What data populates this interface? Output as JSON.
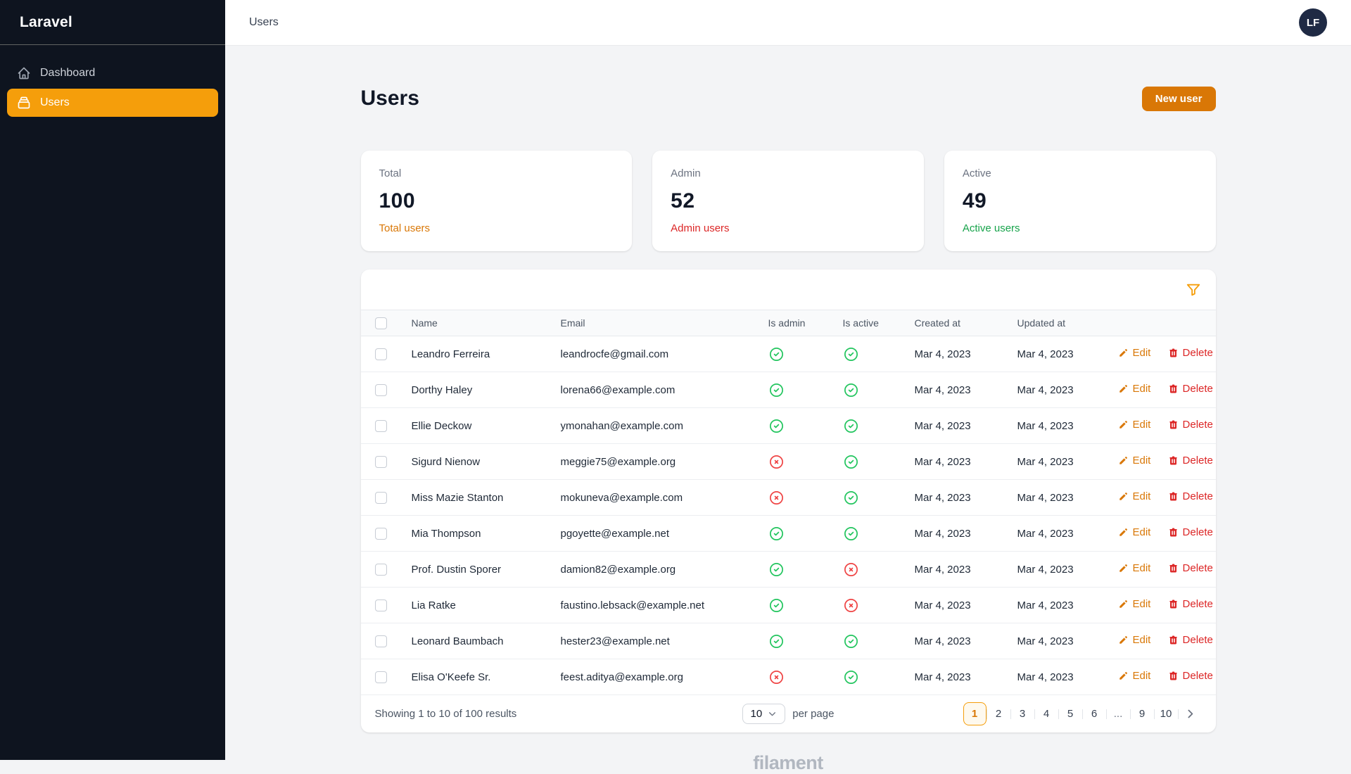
{
  "brand": "Laravel",
  "topbar": {
    "breadcrumb": "Users",
    "avatar_initials": "LF"
  },
  "sidebar": {
    "items": [
      {
        "label": "Dashboard",
        "icon": "home-icon",
        "active": false
      },
      {
        "label": "Users",
        "icon": "collection-icon",
        "active": true
      }
    ]
  },
  "page": {
    "title": "Users",
    "new_user_button": "New user"
  },
  "stats": [
    {
      "label": "Total",
      "value": "100",
      "description": "Total users",
      "color": "#d97706"
    },
    {
      "label": "Admin",
      "value": "52",
      "description": "Admin users",
      "color": "#dc2626"
    },
    {
      "label": "Active",
      "value": "49",
      "description": "Active users",
      "color": "#16a34a"
    }
  ],
  "table": {
    "columns": [
      "Name",
      "Email",
      "Is admin",
      "Is active",
      "Created at",
      "Updated at"
    ],
    "actions": {
      "edit": "Edit",
      "delete": "Delete"
    },
    "rows": [
      {
        "name": "Leandro Ferreira",
        "email": "leandrocfe@gmail.com",
        "is_admin": true,
        "is_active": true,
        "created_at": "Mar 4, 2023",
        "updated_at": "Mar 4, 2023"
      },
      {
        "name": "Dorthy Haley",
        "email": "lorena66@example.com",
        "is_admin": true,
        "is_active": true,
        "created_at": "Mar 4, 2023",
        "updated_at": "Mar 4, 2023"
      },
      {
        "name": "Ellie Deckow",
        "email": "ymonahan@example.com",
        "is_admin": true,
        "is_active": true,
        "created_at": "Mar 4, 2023",
        "updated_at": "Mar 4, 2023"
      },
      {
        "name": "Sigurd Nienow",
        "email": "meggie75@example.org",
        "is_admin": false,
        "is_active": true,
        "created_at": "Mar 4, 2023",
        "updated_at": "Mar 4, 2023"
      },
      {
        "name": "Miss Mazie Stanton",
        "email": "mokuneva@example.com",
        "is_admin": false,
        "is_active": true,
        "created_at": "Mar 4, 2023",
        "updated_at": "Mar 4, 2023"
      },
      {
        "name": "Mia Thompson",
        "email": "pgoyette@example.net",
        "is_admin": true,
        "is_active": true,
        "created_at": "Mar 4, 2023",
        "updated_at": "Mar 4, 2023"
      },
      {
        "name": "Prof. Dustin Sporer",
        "email": "damion82@example.org",
        "is_admin": true,
        "is_active": false,
        "created_at": "Mar 4, 2023",
        "updated_at": "Mar 4, 2023"
      },
      {
        "name": "Lia Ratke",
        "email": "faustino.lebsack@example.net",
        "is_admin": true,
        "is_active": false,
        "created_at": "Mar 4, 2023",
        "updated_at": "Mar 4, 2023"
      },
      {
        "name": "Leonard Baumbach",
        "email": "hester23@example.net",
        "is_admin": true,
        "is_active": true,
        "created_at": "Mar 4, 2023",
        "updated_at": "Mar 4, 2023"
      },
      {
        "name": "Elisa O'Keefe Sr.",
        "email": "feest.aditya@example.org",
        "is_admin": false,
        "is_active": true,
        "created_at": "Mar 4, 2023",
        "updated_at": "Mar 4, 2023"
      }
    ]
  },
  "footer": {
    "summary": "Showing 1 to 10 of 100 results",
    "per_page_value": "10",
    "per_page_label": "per page",
    "pages": [
      "1",
      "2",
      "3",
      "4",
      "5",
      "6",
      "...",
      "9",
      "10"
    ],
    "active_page": "1"
  },
  "watermark": "filament",
  "colors": {
    "primary": "#f59e0b",
    "primary_dark": "#d97706",
    "danger": "#dc2626",
    "success": "#22c55e",
    "sidebar_bg": "#0e141f",
    "page_bg": "#f3f4f6"
  }
}
